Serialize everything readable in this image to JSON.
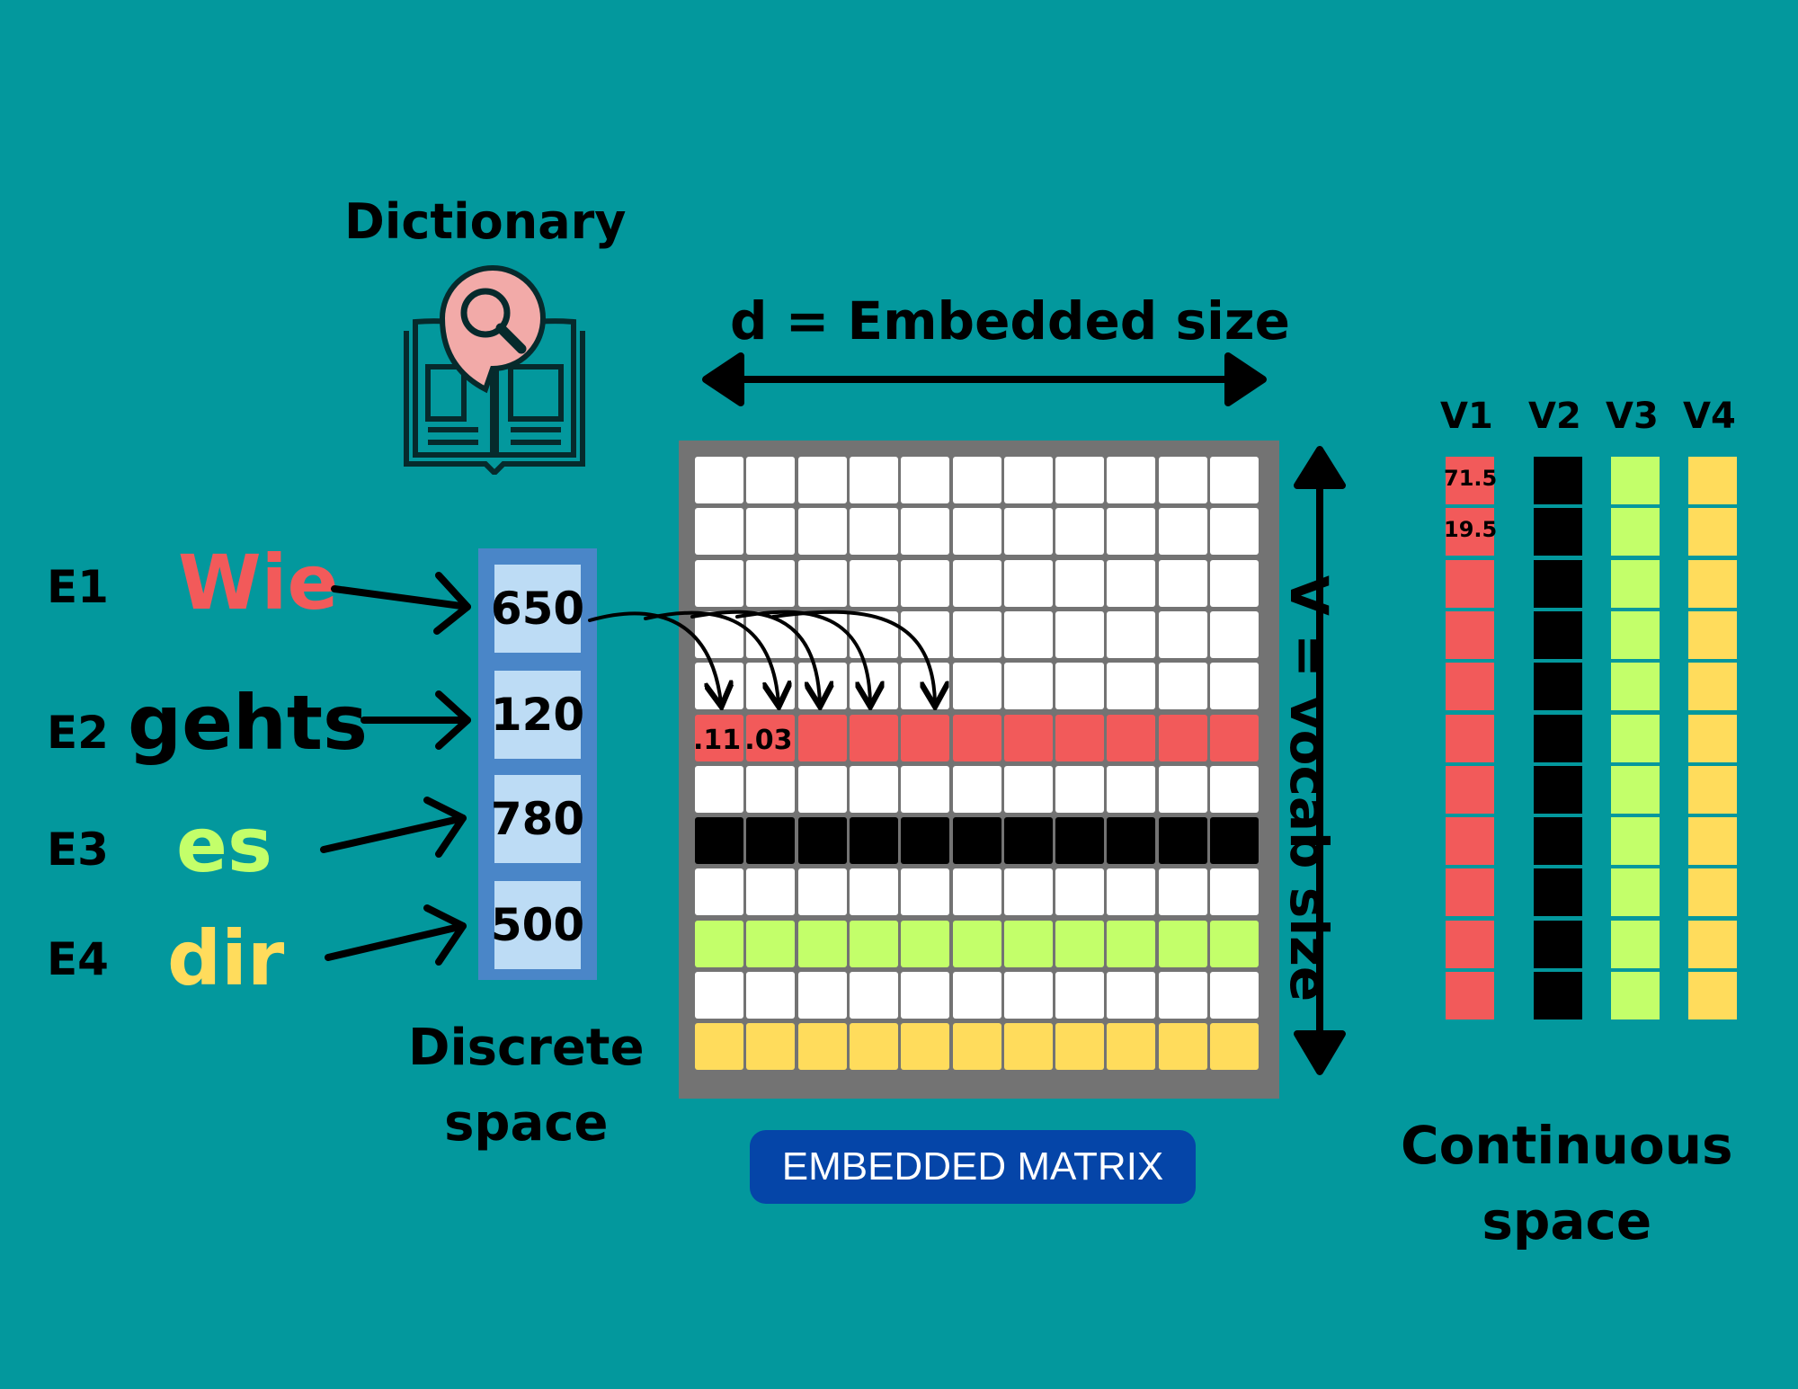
{
  "dictionary": {
    "title": "Dictionary"
  },
  "embedded_size": {
    "label": "d = Embedded size"
  },
  "vocab_size": {
    "label": "V = vocab size"
  },
  "entries": [
    {
      "label": "E1",
      "word": "Wie",
      "token": "650",
      "color": "#f25a5a"
    },
    {
      "label": "E2",
      "word": "gehts",
      "token": "120",
      "color": "#000000"
    },
    {
      "label": "E3",
      "word": "es",
      "token": "780",
      "color": "#c3ff6a"
    },
    {
      "label": "E4",
      "word": "dir",
      "token": "500",
      "color": "#ffdc5c"
    }
  ],
  "discrete_space": {
    "label": "Discrete\nspace"
  },
  "continuous_space": {
    "label": "Continuous\nspace"
  },
  "matrix": {
    "title": "EMBEDDED MATRIX",
    "rows": 12,
    "cols": 11,
    "highlight_rows": [
      {
        "row": 5,
        "color": "#f25a5a"
      },
      {
        "row": 7,
        "color": "#000000"
      },
      {
        "row": 9,
        "color": "#c3ff6a"
      },
      {
        "row": 11,
        "color": "#ffdc5c"
      }
    ],
    "cell_values": [
      ".11",
      ".03"
    ]
  },
  "vectors": [
    {
      "name": "V1",
      "color": "#f25a5a",
      "values": [
        "71.5",
        "19.5"
      ]
    },
    {
      "name": "V2",
      "color": "#000000",
      "values": []
    },
    {
      "name": "V3",
      "color": "#c3ff6a",
      "values": []
    },
    {
      "name": "V4",
      "color": "#ffdc5c",
      "values": []
    }
  ],
  "colors": {
    "background": "#03989d",
    "frame": "#737373",
    "badge": "#0545a8",
    "token_column": "#4a86c8",
    "token_cell": "#bddcf5"
  }
}
